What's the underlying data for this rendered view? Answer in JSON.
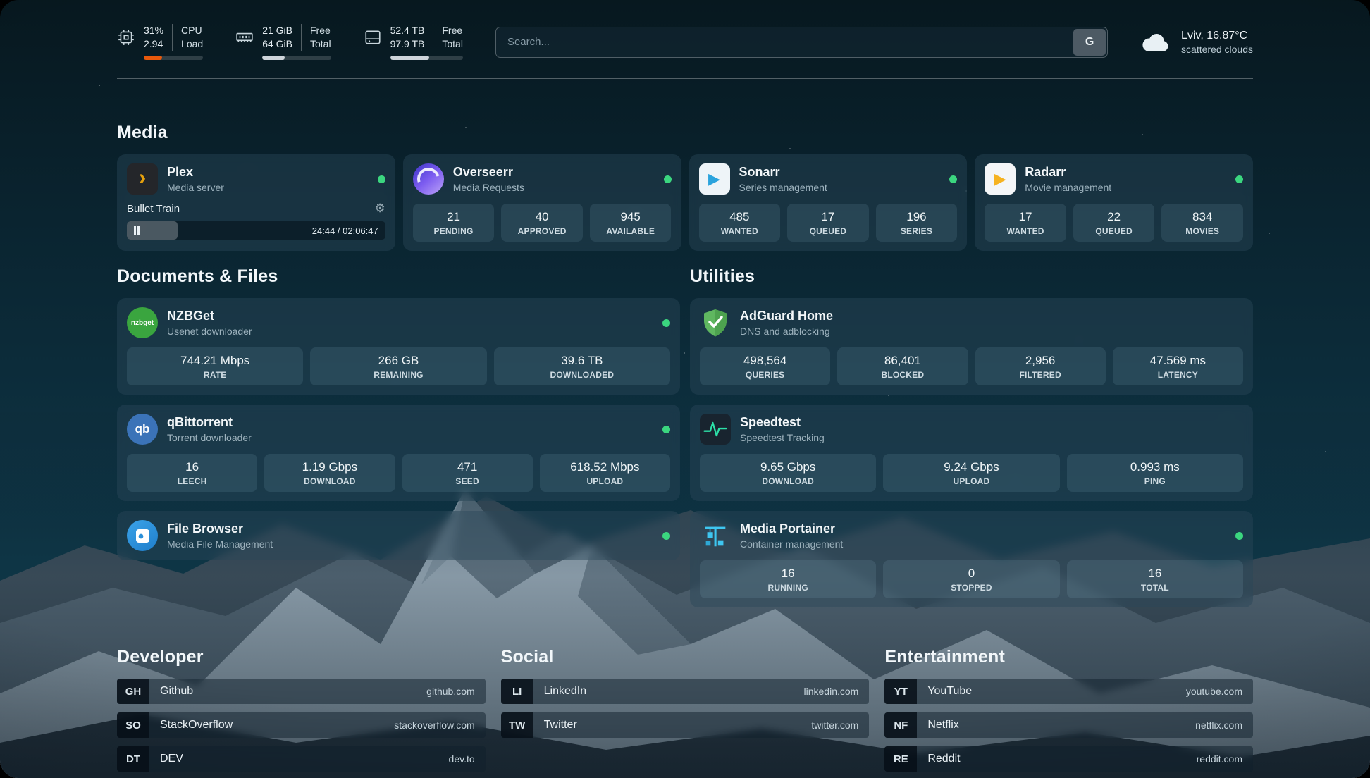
{
  "colors": {
    "status-ok": "#3bd67f",
    "cpu-bar": "#e8590c",
    "meter-bar": "#ced4da"
  },
  "header": {
    "cpu": {
      "value": "31%",
      "sub": "2.94",
      "label1": "CPU",
      "label2": "Load",
      "percent": 31
    },
    "ram": {
      "value": "21 GiB",
      "sub": "64 GiB",
      "label1": "Free",
      "label2": "Total",
      "percent": 33
    },
    "disk": {
      "value": "52.4 TB",
      "sub": "97.9 TB",
      "label1": "Free",
      "label2": "Total",
      "percent": 54
    },
    "search": {
      "placeholder": "Search...",
      "engine": "G"
    },
    "weather": {
      "location": "Lviv, 16.87°C",
      "condition": "scattered clouds"
    }
  },
  "sections": {
    "media": "Media",
    "documents": "Documents & Files",
    "utilities": "Utilities",
    "developer": "Developer",
    "social": "Social",
    "entertainment": "Entertainment"
  },
  "icons": {
    "gear": "⚙",
    "plex": "›",
    "play": "▶",
    "qb": "qb",
    "nzbget": "nzbget"
  },
  "apps": {
    "plex": {
      "name": "Plex",
      "desc": "Media server",
      "now_playing": "Bullet Train",
      "time": "24:44 / 02:06:47",
      "progress": 19.5
    },
    "overseerr": {
      "name": "Overseerr",
      "desc": "Media Requests",
      "stats": [
        {
          "v": "21",
          "l": "PENDING"
        },
        {
          "v": "40",
          "l": "APPROVED"
        },
        {
          "v": "945",
          "l": "AVAILABLE"
        }
      ]
    },
    "sonarr": {
      "name": "Sonarr",
      "desc": "Series management",
      "stats": [
        {
          "v": "485",
          "l": "WANTED"
        },
        {
          "v": "17",
          "l": "QUEUED"
        },
        {
          "v": "196",
          "l": "SERIES"
        }
      ]
    },
    "radarr": {
      "name": "Radarr",
      "desc": "Movie management",
      "stats": [
        {
          "v": "17",
          "l": "WANTED"
        },
        {
          "v": "22",
          "l": "QUEUED"
        },
        {
          "v": "834",
          "l": "MOVIES"
        }
      ]
    },
    "nzbget": {
      "name": "NZBGet",
      "desc": "Usenet downloader",
      "stats": [
        {
          "v": "744.21 Mbps",
          "l": "RATE"
        },
        {
          "v": "266 GB",
          "l": "REMAINING"
        },
        {
          "v": "39.6 TB",
          "l": "DOWNLOADED"
        }
      ]
    },
    "qbittorrent": {
      "name": "qBittorrent",
      "desc": "Torrent downloader",
      "stats": [
        {
          "v": "16",
          "l": "LEECH"
        },
        {
          "v": "1.19 Gbps",
          "l": "DOWNLOAD"
        },
        {
          "v": "471",
          "l": "SEED"
        },
        {
          "v": "618.52 Mbps",
          "l": "UPLOAD"
        }
      ]
    },
    "filebrowser": {
      "name": "File Browser",
      "desc": "Media File Management"
    },
    "adguard": {
      "name": "AdGuard Home",
      "desc": "DNS and adblocking",
      "stats": [
        {
          "v": "498,564",
          "l": "QUERIES"
        },
        {
          "v": "86,401",
          "l": "BLOCKED"
        },
        {
          "v": "2,956",
          "l": "FILTERED"
        },
        {
          "v": "47.569 ms",
          "l": "LATENCY"
        }
      ]
    },
    "speedtest": {
      "name": "Speedtest",
      "desc": "Speedtest Tracking",
      "stats": [
        {
          "v": "9.65 Gbps",
          "l": "DOWNLOAD"
        },
        {
          "v": "9.24 Gbps",
          "l": "UPLOAD"
        },
        {
          "v": "0.993 ms",
          "l": "PING"
        }
      ]
    },
    "portainer": {
      "name": "Media Portainer",
      "desc": "Container management",
      "stats": [
        {
          "v": "16",
          "l": "RUNNING"
        },
        {
          "v": "0",
          "l": "STOPPED"
        },
        {
          "v": "16",
          "l": "TOTAL"
        }
      ]
    }
  },
  "links": {
    "developer": [
      {
        "badge": "GH",
        "name": "Github",
        "url": "github.com"
      },
      {
        "badge": "SO",
        "name": "StackOverflow",
        "url": "stackoverflow.com"
      },
      {
        "badge": "DT",
        "name": "DEV",
        "url": "dev.to"
      }
    ],
    "social": [
      {
        "badge": "LI",
        "name": "LinkedIn",
        "url": "linkedin.com"
      },
      {
        "badge": "TW",
        "name": "Twitter",
        "url": "twitter.com"
      }
    ],
    "entertainment": [
      {
        "badge": "YT",
        "name": "YouTube",
        "url": "youtube.com"
      },
      {
        "badge": "NF",
        "name": "Netflix",
        "url": "netflix.com"
      },
      {
        "badge": "RE",
        "name": "Reddit",
        "url": "reddit.com"
      }
    ]
  }
}
